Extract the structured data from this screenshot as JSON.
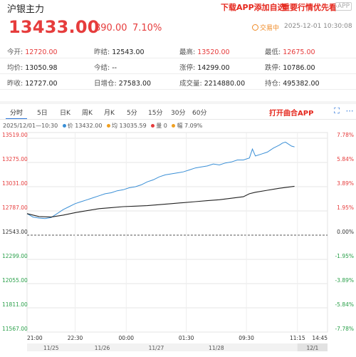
{
  "header": {
    "title": "沪银主力",
    "promo_download": "下载APP添加自选",
    "promo_important": "重要行情优先看",
    "app_badge": "APP",
    "price": "13433.00",
    "change": "890.00",
    "change_pct": "7.10%",
    "status": "交易中",
    "timestamp": "2025-12-01 10:30:08"
  },
  "stats": [
    [
      {
        "key": "今开:",
        "value": "12720.00",
        "red": true
      },
      {
        "key": "昨结:",
        "value": "12543.00",
        "red": false
      },
      {
        "key": "最高:",
        "value": "13520.00",
        "red": true
      },
      {
        "key": "最低:",
        "value": "12675.00",
        "red": true
      }
    ],
    [
      {
        "key": "均价:",
        "value": "13050.98",
        "red": false
      },
      {
        "key": "今结:",
        "value": "--",
        "red": false
      },
      {
        "key": "涨停:",
        "value": "14299.00",
        "red": false
      },
      {
        "key": "跌停:",
        "value": "10786.00",
        "red": false
      }
    ],
    [
      {
        "key": "昨收:",
        "value": "12727.00",
        "red": false
      },
      {
        "key": "日增仓:",
        "value": "27583.00",
        "red": false
      },
      {
        "key": "成交量:",
        "value": "2214880.00",
        "red": false
      },
      {
        "key": "持仓:",
        "value": "495382.00",
        "red": false
      }
    ]
  ],
  "tabs": [
    "分时",
    "5日",
    "日K",
    "周K",
    "月K",
    "5分",
    "15分",
    "30分",
    "60分"
  ],
  "active_tab": 0,
  "open_app": "打开曲合APP",
  "legend": {
    "time": "2025/12/01—10:30",
    "price_label": "价",
    "price": "13432.00",
    "avg_label": "均",
    "avg": "13035.59",
    "volume_label": "量",
    "volume": "0",
    "amplitude_label": "幅",
    "amplitude": "7.09%"
  },
  "colors": {
    "up": "#e63c3c",
    "down": "#2aa04a",
    "price_line": "#3a8fd6",
    "avg_line": "#222222",
    "accent": "#2b74d9"
  },
  "chart_data": {
    "type": "line",
    "title": "",
    "ylim": [
      11567,
      13519
    ],
    "prev_settle": 12543,
    "y_ticks_left": [
      "13519.00",
      "13275.00",
      "13031.00",
      "12787.00",
      "12543.00",
      "12299.00",
      "12055.00",
      "11811.00",
      "11567.00"
    ],
    "y_ticks_right": [
      "7.78%",
      "5.84%",
      "3.89%",
      "1.95%",
      "0.00%",
      "-1.95%",
      "-3.89%",
      "-5.84%",
      "-7.78%"
    ],
    "x_time_labels": [
      "21:00",
      "22:30",
      "00:00",
      "01:30",
      "09:30",
      "11:15",
      "14:45"
    ],
    "x_date_labels": [
      "11/25",
      "11/26",
      "11/27",
      "11/28",
      "12/1"
    ],
    "x_range": [
      0,
      100
    ],
    "current_index": 89,
    "series": [
      {
        "name": "价",
        "x": [
          0,
          2,
          4,
          6,
          8,
          10,
          12,
          14,
          16,
          18,
          20,
          22,
          24,
          26,
          28,
          30,
          32,
          34,
          36,
          38,
          40,
          42,
          44,
          46,
          48,
          50,
          52,
          54,
          56,
          58,
          60,
          62,
          64,
          66,
          68,
          70,
          72,
          74,
          75,
          76,
          78,
          80,
          82,
          84,
          85,
          86,
          87,
          88,
          89
        ],
        "values": [
          12760,
          12725,
          12715,
          12710,
          12720,
          12760,
          12800,
          12830,
          12860,
          12880,
          12900,
          12920,
          12940,
          12960,
          12970,
          12990,
          13000,
          13020,
          13030,
          13050,
          13080,
          13100,
          13130,
          13150,
          13160,
          13170,
          13180,
          13200,
          13220,
          13230,
          13240,
          13260,
          13250,
          13270,
          13280,
          13300,
          13300,
          13320,
          13410,
          13340,
          13360,
          13380,
          13420,
          13450,
          13470,
          13480,
          13460,
          13440,
          13432
        ]
      },
      {
        "name": "均",
        "x": [
          0,
          4,
          8,
          12,
          16,
          20,
          24,
          28,
          32,
          36,
          40,
          44,
          48,
          52,
          56,
          60,
          64,
          68,
          72,
          74,
          76,
          80,
          84,
          89
        ],
        "values": [
          12760,
          12730,
          12725,
          12745,
          12770,
          12790,
          12810,
          12820,
          12830,
          12835,
          12840,
          12850,
          12860,
          12870,
          12880,
          12890,
          12900,
          12915,
          12930,
          12960,
          12975,
          12995,
          13015,
          13035
        ]
      }
    ]
  }
}
